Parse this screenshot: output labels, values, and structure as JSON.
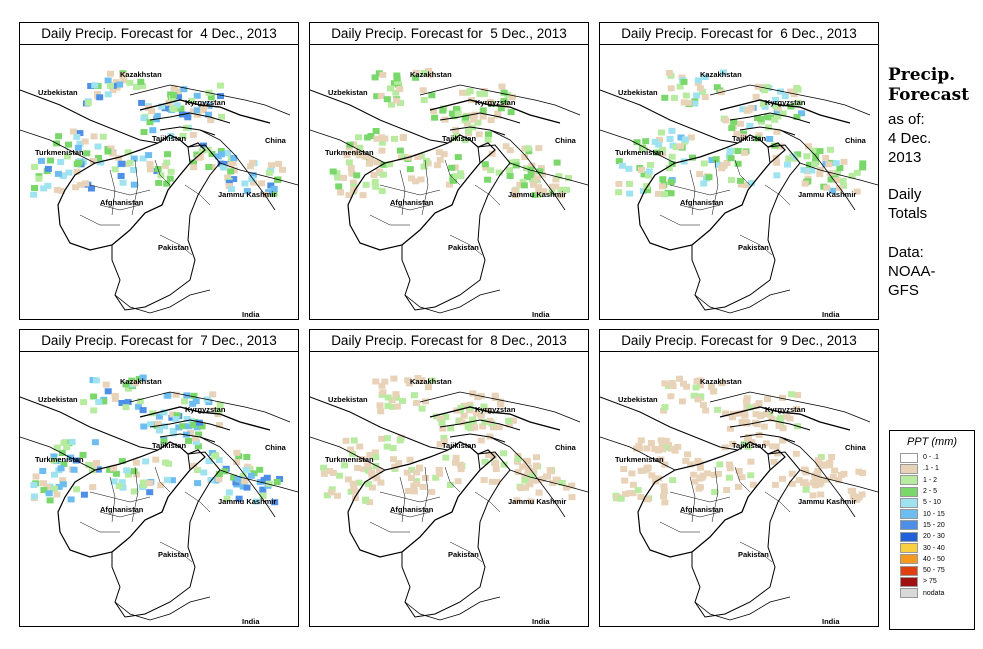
{
  "panels": [
    {
      "title": "Daily Precip. Forecast for  4 Dec., 2013",
      "intensity": 3
    },
    {
      "title": "Daily Precip. Forecast for  5 Dec., 2013",
      "intensity": 1.5
    },
    {
      "title": "Daily Precip. Forecast for  6 Dec., 2013",
      "intensity": 2.2
    },
    {
      "title": "Daily Precip. Forecast for  7 Dec., 2013",
      "intensity": 2.8
    },
    {
      "title": "Daily Precip. Forecast for  8 Dec., 2013",
      "intensity": 1
    },
    {
      "title": "Daily Precip. Forecast for  9 Dec., 2013",
      "intensity": 0.8
    }
  ],
  "map_labels": {
    "kazakhstan": "Kazakhstan",
    "uzbekistan": "Uzbekistan",
    "kyrgyzstan": "Kyrgyzstan",
    "tajikistan": "Tajikistan",
    "china": "China",
    "turkmenistan": "Turkmenistan",
    "afghanistan": "Afghanistan",
    "jammu_kashmir": "Jammu Kashmir",
    "pakistan": "Pakistan",
    "india": "India"
  },
  "sidebar": {
    "title_line1": "Precip.",
    "title_line2": "Forecast",
    "asof_line1": "as of:",
    "asof_line2": "4 Dec.",
    "asof_line3": "2013",
    "daily_line1": "Daily",
    "daily_line2": "Totals",
    "data_line1": "Data:",
    "data_line2": "NOAA-",
    "data_line3": "GFS"
  },
  "legend": {
    "title": "PPT (mm)",
    "items": [
      {
        "label": "0 - .1",
        "color": "#ffffff"
      },
      {
        "label": ".1 - 1",
        "color": "#e8d3b8"
      },
      {
        "label": "1 - 2",
        "color": "#b6eba0"
      },
      {
        "label": "2 - 5",
        "color": "#7ad86b"
      },
      {
        "label": "5 - 10",
        "color": "#9fe3f0"
      },
      {
        "label": "10 - 15",
        "color": "#6dbdf0"
      },
      {
        "label": "15 - 20",
        "color": "#4d8ee6"
      },
      {
        "label": "20 - 30",
        "color": "#2060d8"
      },
      {
        "label": "30 - 40",
        "color": "#f8d040"
      },
      {
        "label": "40 - 50",
        "color": "#f59a20"
      },
      {
        "label": "50 - 75",
        "color": "#e04010"
      },
      {
        "label": "> 75",
        "color": "#a01010"
      },
      {
        "label": "nodata",
        "color": "#d8d8d8"
      }
    ]
  }
}
